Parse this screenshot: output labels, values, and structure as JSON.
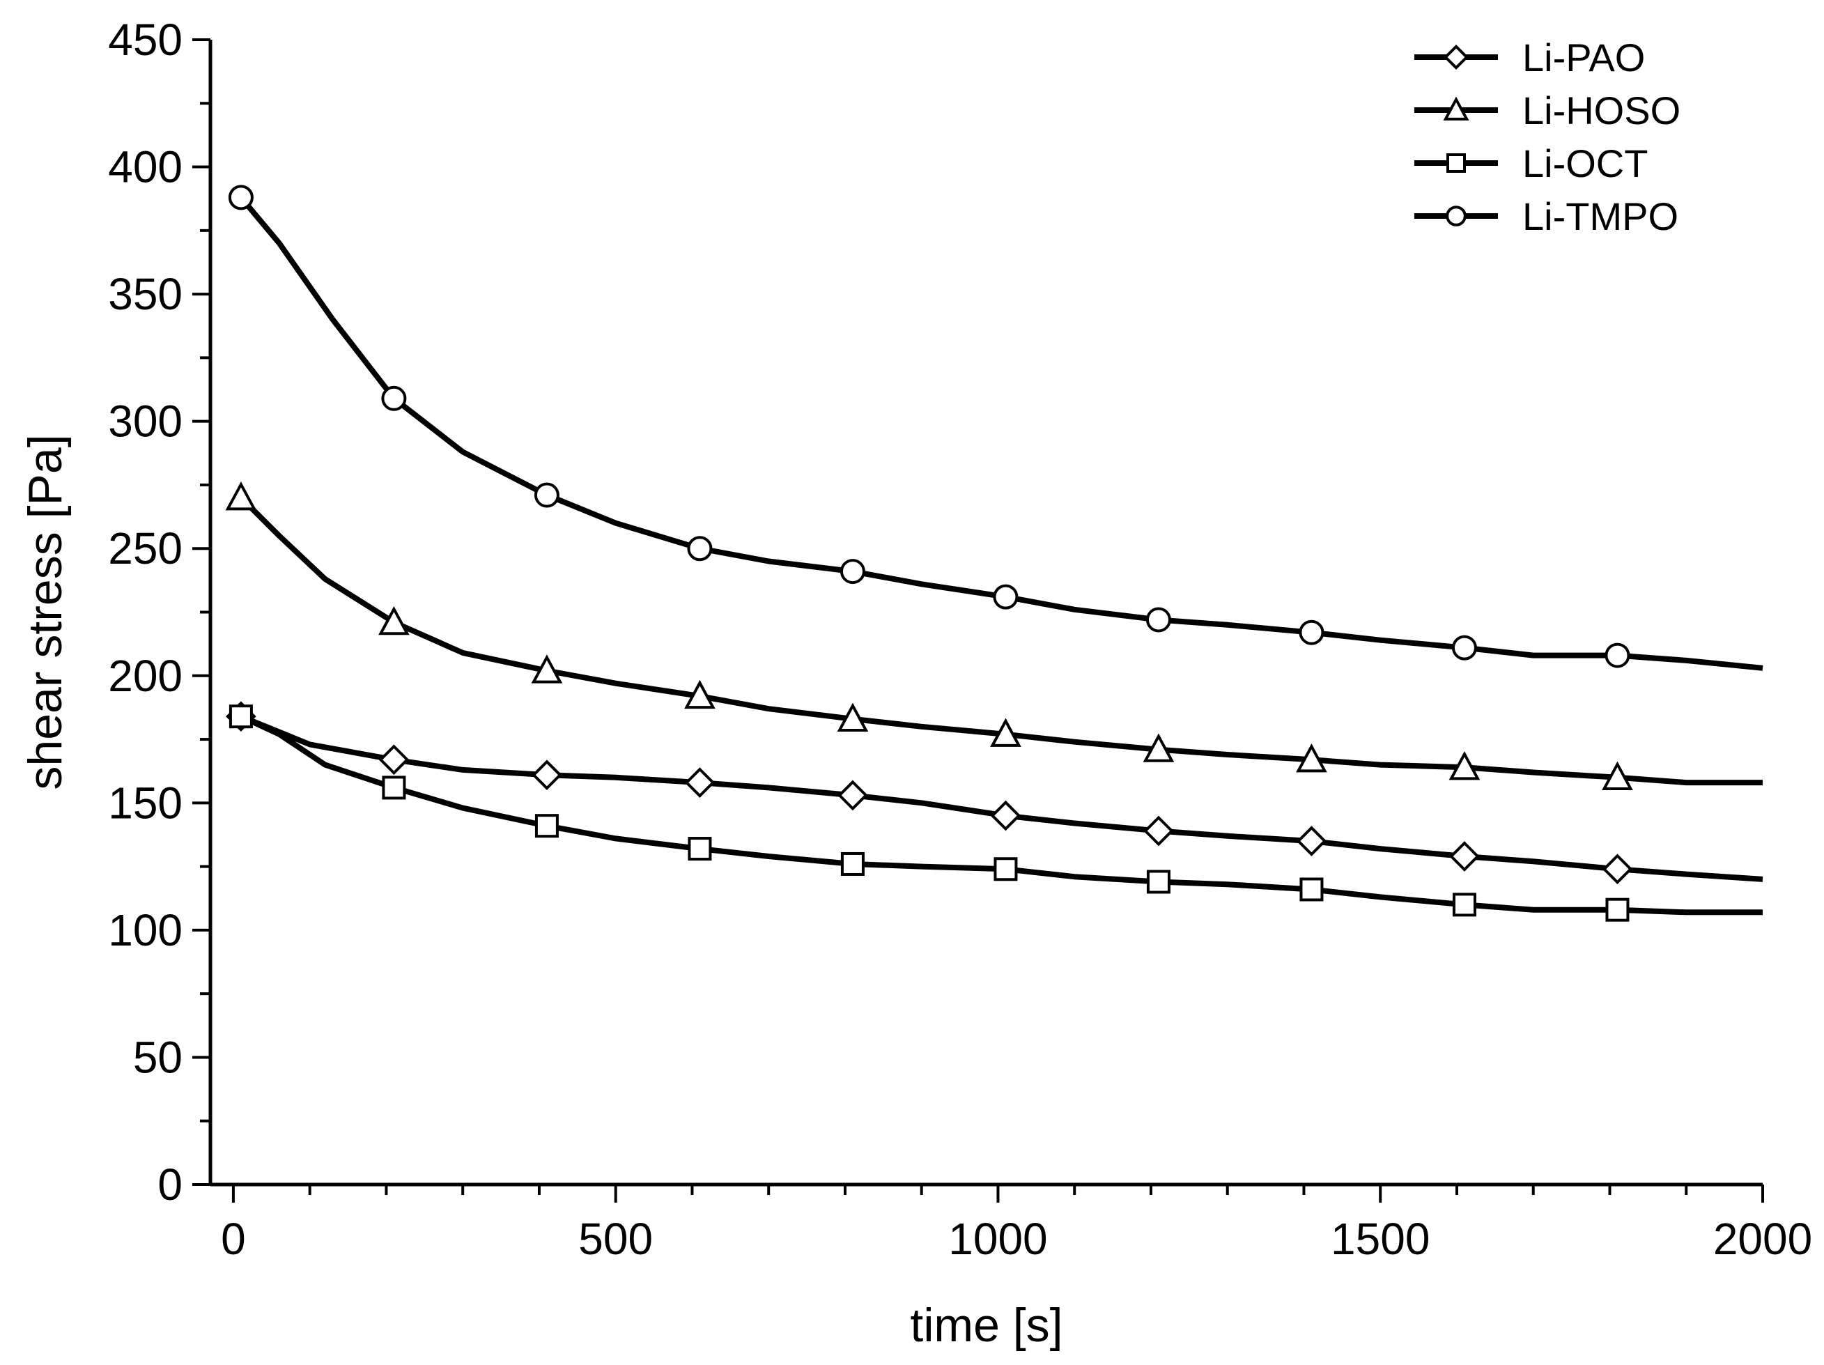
{
  "chart_data": {
    "type": "line",
    "xlabel": "time [s]",
    "ylabel": "shear stress [Pa]",
    "xlim": [
      -30,
      2000
    ],
    "ylim": [
      0,
      450
    ],
    "x_ticks": [
      0,
      500,
      1000,
      1500,
      2000
    ],
    "y_ticks": [
      0,
      50,
      100,
      150,
      200,
      250,
      300,
      350,
      400,
      450
    ],
    "x_minor_step": 100,
    "y_minor_step": 25,
    "grid": false,
    "legend_position": "top-right",
    "series": [
      {
        "name": "Li-PAO",
        "marker": "diamond",
        "line": [
          [
            10,
            184
          ],
          [
            100,
            173
          ],
          [
            210,
            167
          ],
          [
            300,
            163
          ],
          [
            410,
            161
          ],
          [
            500,
            160
          ],
          [
            610,
            158
          ],
          [
            700,
            156
          ],
          [
            810,
            153
          ],
          [
            900,
            150
          ],
          [
            1010,
            145
          ],
          [
            1100,
            142
          ],
          [
            1210,
            139
          ],
          [
            1300,
            137
          ],
          [
            1410,
            135
          ],
          [
            1500,
            132
          ],
          [
            1610,
            129
          ],
          [
            1700,
            127
          ],
          [
            1810,
            124
          ],
          [
            1900,
            122
          ],
          [
            2000,
            120
          ]
        ],
        "markers": [
          [
            10,
            184
          ],
          [
            210,
            167
          ],
          [
            410,
            161
          ],
          [
            610,
            158
          ],
          [
            810,
            153
          ],
          [
            1010,
            145
          ],
          [
            1210,
            139
          ],
          [
            1410,
            135
          ],
          [
            1610,
            129
          ],
          [
            1810,
            124
          ]
        ]
      },
      {
        "name": "Li-HOSO",
        "marker": "triangle",
        "line": [
          [
            10,
            270
          ],
          [
            60,
            255
          ],
          [
            120,
            238
          ],
          [
            210,
            221
          ],
          [
            300,
            209
          ],
          [
            410,
            202
          ],
          [
            500,
            197
          ],
          [
            610,
            192
          ],
          [
            700,
            187
          ],
          [
            810,
            183
          ],
          [
            900,
            180
          ],
          [
            1010,
            177
          ],
          [
            1100,
            174
          ],
          [
            1210,
            171
          ],
          [
            1300,
            169
          ],
          [
            1410,
            167
          ],
          [
            1500,
            165
          ],
          [
            1610,
            164
          ],
          [
            1700,
            162
          ],
          [
            1810,
            160
          ],
          [
            1900,
            158
          ],
          [
            2000,
            158
          ]
        ],
        "markers": [
          [
            10,
            270
          ],
          [
            210,
            221
          ],
          [
            410,
            202
          ],
          [
            610,
            192
          ],
          [
            810,
            183
          ],
          [
            1010,
            177
          ],
          [
            1210,
            171
          ],
          [
            1410,
            167
          ],
          [
            1610,
            164
          ],
          [
            1810,
            160
          ]
        ]
      },
      {
        "name": "Li-OCT",
        "marker": "square",
        "line": [
          [
            10,
            184
          ],
          [
            60,
            177
          ],
          [
            120,
            165
          ],
          [
            210,
            156
          ],
          [
            300,
            148
          ],
          [
            410,
            141
          ],
          [
            500,
            136
          ],
          [
            610,
            132
          ],
          [
            700,
            129
          ],
          [
            810,
            126
          ],
          [
            900,
            125
          ],
          [
            1010,
            124
          ],
          [
            1100,
            121
          ],
          [
            1210,
            119
          ],
          [
            1300,
            118
          ],
          [
            1410,
            116
          ],
          [
            1500,
            113
          ],
          [
            1610,
            110
          ],
          [
            1700,
            108
          ],
          [
            1810,
            108
          ],
          [
            1900,
            107
          ],
          [
            2000,
            107
          ]
        ],
        "markers": [
          [
            10,
            184
          ],
          [
            210,
            156
          ],
          [
            410,
            141
          ],
          [
            610,
            132
          ],
          [
            810,
            126
          ],
          [
            1010,
            124
          ],
          [
            1210,
            119
          ],
          [
            1410,
            116
          ],
          [
            1610,
            110
          ],
          [
            1810,
            108
          ]
        ]
      },
      {
        "name": "Li-TMPO",
        "marker": "circle",
        "line": [
          [
            10,
            388
          ],
          [
            60,
            370
          ],
          [
            130,
            340
          ],
          [
            210,
            309
          ],
          [
            300,
            288
          ],
          [
            410,
            271
          ],
          [
            500,
            260
          ],
          [
            610,
            250
          ],
          [
            700,
            245
          ],
          [
            810,
            241
          ],
          [
            900,
            236
          ],
          [
            1010,
            231
          ],
          [
            1100,
            226
          ],
          [
            1210,
            222
          ],
          [
            1300,
            220
          ],
          [
            1410,
            217
          ],
          [
            1500,
            214
          ],
          [
            1610,
            211
          ],
          [
            1700,
            208
          ],
          [
            1810,
            208
          ],
          [
            1900,
            206
          ],
          [
            2000,
            203
          ]
        ],
        "markers": [
          [
            10,
            388
          ],
          [
            210,
            309
          ],
          [
            410,
            271
          ],
          [
            610,
            250
          ],
          [
            810,
            241
          ],
          [
            1010,
            231
          ],
          [
            1210,
            222
          ],
          [
            1410,
            217
          ],
          [
            1610,
            211
          ],
          [
            1810,
            208
          ]
        ]
      }
    ]
  }
}
